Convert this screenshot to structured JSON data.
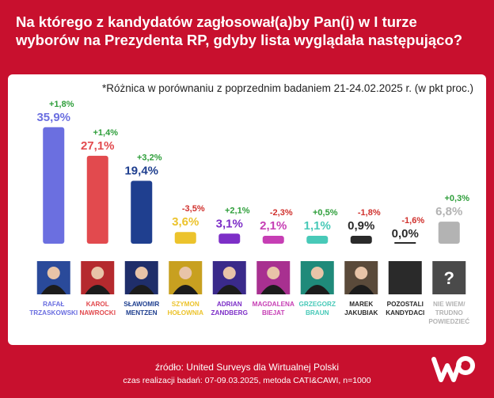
{
  "title": "Na którego z kandydatów zagłosował(a)by Pan(i) w I turze wyborów na Prezydenta RP, gdyby lista wyglądała następująco?",
  "note": "*Różnica w porównaniu z poprzednim badaniem 21-24.02.2025 r. (w pkt proc.)",
  "footer": {
    "source": "źródło: United Surveys dla Wirtualnej Polski",
    "meta": "czas realizacji badań: 07-09.03.2025, metoda CATI&CAWI, n=1000"
  },
  "colors": {
    "background": "#c8102e",
    "positive_change": "#2e9e3a",
    "negative_change": "#d0312d"
  },
  "chart_data": {
    "type": "bar",
    "categories": [
      "RAFAŁ TRZASKOWSKI",
      "KAROL NAWROCKI",
      "SŁAWOMIR MENTZEN",
      "SZYMON HOŁOWNIA",
      "ADRIAN ZANDBERG",
      "MAGDALENA BIEJAT",
      "GRZEGORZ BRAUN",
      "MAREK JAKUBIAK",
      "POZOSTALI KANDYDACI",
      "NIE WIEM/ TRUDNO POWIEDZIEĆ"
    ],
    "label_lines": [
      [
        "RAFAŁ",
        "TRZASKOWSKI"
      ],
      [
        "KAROL",
        "NAWROCKI"
      ],
      [
        "SŁAWOMIR",
        "MENTZEN"
      ],
      [
        "SZYMON",
        "HOŁOWNIA"
      ],
      [
        "ADRIAN",
        "ZANDBERG"
      ],
      [
        "MAGDALENA",
        "BIEJAT"
      ],
      [
        "GRZEGORZ",
        "BRAUN"
      ],
      [
        "MAREK",
        "JAKUBIAK"
      ],
      [
        "POZOSTALI",
        "KANDYDACI"
      ],
      [
        "NIE WIEM/",
        "TRUDNO",
        "POWIEDZIEĆ"
      ]
    ],
    "values": [
      35.9,
      27.1,
      19.4,
      3.6,
      3.1,
      2.1,
      1.1,
      0.9,
      0.0,
      6.8
    ],
    "value_labels": [
      "35,9%",
      "27,1%",
      "19,4%",
      "3,6%",
      "3,1%",
      "2,1%",
      "1,1%",
      "0,9%",
      "0,0%",
      "6,8%"
    ],
    "changes": [
      1.8,
      1.4,
      3.2,
      -3.5,
      2.1,
      -2.3,
      0.5,
      -1.8,
      -1.6,
      0.3
    ],
    "change_labels": [
      "+1,8%",
      "+1,4%",
      "+3,2%",
      "-3,5%",
      "+2,1%",
      "-2,3%",
      "+0,5%",
      "-1,8%",
      "-1,6%",
      "+0,3%"
    ],
    "colors": [
      "#6b6fe0",
      "#e24a4e",
      "#1f3f8f",
      "#ecc32c",
      "#7d2fc7",
      "#c63eb4",
      "#48c9b8",
      "#2a2a2a",
      "#2a2a2a",
      "#b3b3b3"
    ],
    "photo_icons": [
      "person-photo",
      "person-photo",
      "person-photo",
      "person-photo",
      "person-photo",
      "person-photo",
      "person-photo",
      "person-photo",
      "blank-photo",
      "question-mark"
    ],
    "photo_bg": [
      "#2a4a9a",
      "#b52a2e",
      "#1f2e6a",
      "#c8a020",
      "#3a2a8a",
      "#a83090",
      "#1f8a7a",
      "#5a4a3a",
      "#2a2a2a",
      "#4a4a4a"
    ],
    "ylim": [
      0,
      40
    ]
  }
}
